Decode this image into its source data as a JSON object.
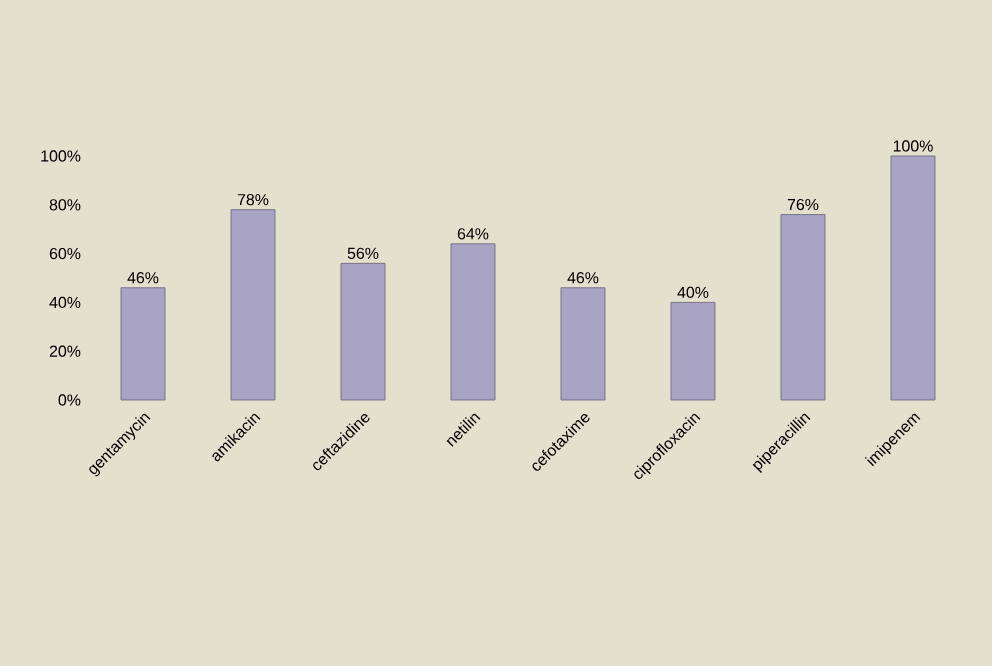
{
  "chart_data": {
    "type": "bar",
    "categories": [
      "gentamycin",
      "amikacin",
      "ceftazidine",
      "netilin",
      "cefotaxime",
      "ciprofloxacin",
      "piperacillin",
      "imipenem"
    ],
    "values": [
      46,
      78,
      56,
      64,
      46,
      40,
      76,
      100
    ],
    "value_labels": [
      "46%",
      "78%",
      "56%",
      "64%",
      "46%",
      "40%",
      "76%",
      "100%"
    ],
    "color": "#a9a4c4",
    "ylim": [
      0,
      100
    ],
    "yticks": [
      {
        "value": 0,
        "label": "0%"
      },
      {
        "value": 20,
        "label": "20%"
      },
      {
        "value": 40,
        "label": "40%"
      },
      {
        "value": 60,
        "label": "60%"
      },
      {
        "value": 80,
        "label": "80%"
      },
      {
        "value": 100,
        "label": "100%"
      }
    ],
    "grid": false
  }
}
